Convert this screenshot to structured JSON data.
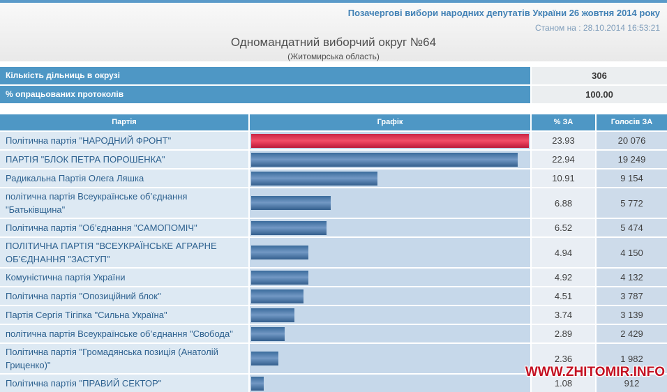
{
  "header": {
    "election_title": "Позачергові вибори народних депутатів України 26 жовтня 2014 року",
    "as_of": "Станом на : 28.10.2014 16:53:21",
    "district_title": "Одномандатний виборчий округ №64",
    "district_subtitle": "(Житомирська область)"
  },
  "page": {
    "watermark": "WWW.ZHITOMIR.INFO"
  },
  "summary": {
    "rows": [
      {
        "label": "Кількість дільниць в окрузі",
        "value": "306"
      },
      {
        "label": "% опрацьованих протоколів",
        "value": "100.00"
      }
    ]
  },
  "table": {
    "headers": [
      "Партія",
      "Графік",
      "% ЗА",
      "Голосів ЗА"
    ]
  },
  "parties": [
    {
      "name": "Політична партія \"НАРОДНИЙ ФРОНТ\"",
      "pct": 23.93,
      "pct_label": "23.93",
      "votes_label": "20 076",
      "highlight": true
    },
    {
      "name": "ПАРТІЯ \"БЛОК ПЕТРА ПОРОШЕНКА\"",
      "pct": 22.94,
      "pct_label": "22.94",
      "votes_label": "19 249",
      "highlight": false
    },
    {
      "name": "Радикальна Партія Олега Ляшка",
      "pct": 10.91,
      "pct_label": "10.91",
      "votes_label": "9 154",
      "highlight": false
    },
    {
      "name": "політична партія Всеукраїнське об’єднання \"Батьківщина\"",
      "pct": 6.88,
      "pct_label": "6.88",
      "votes_label": "5 772",
      "highlight": false
    },
    {
      "name": "Політична партія \"Об’єднання \"САМОПОМІЧ\"",
      "pct": 6.52,
      "pct_label": "6.52",
      "votes_label": "5 474",
      "highlight": false
    },
    {
      "name": "ПОЛІТИЧНА ПАРТІЯ \"ВСЕУКРАЇНСЬКЕ АГРАРНЕ ОБ’ЄДНАННЯ \"ЗАСТУП\"",
      "pct": 4.94,
      "pct_label": "4.94",
      "votes_label": "4 150",
      "highlight": false
    },
    {
      "name": "Комуністична партія України",
      "pct": 4.92,
      "pct_label": "4.92",
      "votes_label": "4 132",
      "highlight": false
    },
    {
      "name": "Політична партія \"Опозиційний блок\"",
      "pct": 4.51,
      "pct_label": "4.51",
      "votes_label": "3 787",
      "highlight": false
    },
    {
      "name": "Партія Сергія Тігіпка \"Сильна Україна\"",
      "pct": 3.74,
      "pct_label": "3.74",
      "votes_label": "3 139",
      "highlight": false
    },
    {
      "name": "політична партія Всеукраїнське об’єднання \"Свобода\"",
      "pct": 2.89,
      "pct_label": "2.89",
      "votes_label": "2 429",
      "highlight": false
    },
    {
      "name": "Політична партія \"Громадянська позиція (Анатолій Гриценко)\"",
      "pct": 2.36,
      "pct_label": "2.36",
      "votes_label": "1 982",
      "highlight": false
    },
    {
      "name": "Політична партія \"ПРАВИЙ СЕКТОР\"",
      "pct": 1.08,
      "pct_label": "1.08",
      "votes_label": "912",
      "highlight": false
    }
  ],
  "chart_data": {
    "type": "bar",
    "orientation": "horizontal",
    "title": "Одномандатний виборчий округ №64 (Житомирська область)",
    "categories": [
      "Політична партія \"НАРОДНИЙ ФРОНТ\"",
      "ПАРТІЯ \"БЛОК ПЕТРА ПОРОШЕНКА\"",
      "Радикальна Партія Олега Ляшка",
      "політична партія Всеукраїнське об’єднання \"Батьківщина\"",
      "Політична партія \"Об’єднання \"САМОПОМІЧ\"",
      "ПОЛІТИЧНА ПАРТІЯ \"ВСЕУКРАЇНСЬКЕ АГРАРНЕ ОБ’ЄДНАННЯ \"ЗАСТУП\"",
      "Комуністична партія України",
      "Політична партія \"Опозиційний блок\"",
      "Партія Сергія Тігіпка \"Сильна Україна\"",
      "політична партія Всеукраїнське об’єднання \"Свобода\"",
      "Політична партія \"Громадянська позиція (Анатолій Гриценко)\"",
      "Політична партія \"ПРАВИЙ СЕКТОР\""
    ],
    "series": [
      {
        "name": "% ЗА",
        "values": [
          23.93,
          22.94,
          10.91,
          6.88,
          6.52,
          4.94,
          4.92,
          4.51,
          3.74,
          2.89,
          2.36,
          1.08
        ]
      },
      {
        "name": "Голосів ЗА",
        "values": [
          20076,
          19249,
          9154,
          5772,
          5474,
          4150,
          4132,
          3787,
          3139,
          2429,
          1982,
          912
        ]
      }
    ],
    "xlim": [
      0,
      23.93
    ],
    "legend": "none",
    "grid": false,
    "highlight_color": "#e6314f",
    "bar_color": "#4a7aac"
  },
  "colors": {
    "accent_blue": "#4e97c5",
    "top_strip": "#5a9ac9",
    "bar_blue": "#4a7aac",
    "bar_red": "#e6314f",
    "watermark_red": "#c41122"
  }
}
